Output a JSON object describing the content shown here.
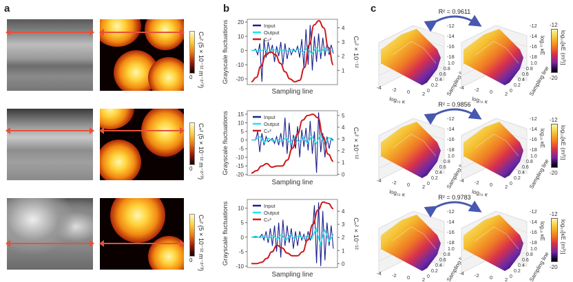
{
  "panels": {
    "a": "a",
    "b": "b",
    "c": "c"
  },
  "panel_a": {
    "colorbar_label": "Cₙ² (5 × 10⁻¹² m⁻²ᐟ³)",
    "colorbar_min": "0"
  },
  "panel_c": {
    "r2": [
      "R² = 0.9611",
      "R² = 0.9856",
      "R² = 0.9783"
    ],
    "z_ticks": [
      "-12",
      "-14",
      "-16",
      "-18"
    ],
    "x_ticks": [
      "-4",
      "-2",
      "0",
      "2"
    ],
    "y_ticks": [
      "0",
      "0.2",
      "0.4",
      "0.6",
      "0.8",
      "1.0"
    ],
    "xlabel": "log₁₀ κ",
    "ylabel": "Sampling line",
    "zlabel": "log₁₀ κE",
    "colorbar_label": "log₁₀[κE (m³)]",
    "colorbar_max": "-12",
    "colorbar_min": "-20",
    "colormap": [
      "#fbf7a8",
      "#f5c330",
      "#f27a20",
      "#d7304a",
      "#7a22a0",
      "#1a0a40",
      "#000000"
    ]
  },
  "colors": {
    "input": "#1a1f8c",
    "output": "#19e6f0",
    "cn2": "#cc1a1a",
    "arrow": "#e8503a",
    "r2_arrow": "#4858b0"
  },
  "chart_data": [
    {
      "type": "line",
      "xlabel": "Sampling line",
      "ylabel": "Grayscale fluctuations",
      "y2label": "Cₙ² × 10⁻¹²",
      "legend": [
        "Input",
        "Output",
        "Cₙ²"
      ],
      "legend_placement": "top-left",
      "ylim": [
        -24,
        22
      ],
      "yticks": [
        -20,
        -10,
        0,
        10,
        20
      ],
      "y2lim": [
        0,
        4.6
      ],
      "y2ticks": [
        1,
        2,
        3,
        4
      ],
      "input": [
        0,
        0,
        1,
        -3,
        5,
        -22,
        8,
        -5,
        6,
        -2,
        4,
        -8,
        3,
        -4,
        6,
        -10,
        5,
        -6,
        2,
        -3,
        1,
        -1,
        3,
        -5,
        8,
        -12,
        15,
        -10,
        18,
        -14,
        10,
        -8,
        12,
        -6,
        9,
        -4,
        5,
        -3,
        4,
        -2
      ],
      "output": [
        0,
        0.3,
        -0.5,
        1,
        -1.5,
        1,
        -0.8,
        0.6,
        -1,
        0.8,
        -0.5,
        1.2,
        -1.5,
        2,
        -2.5,
        2,
        -1.5,
        1.8,
        -1,
        0.5
      ],
      "cn2": [
        0.2,
        0.5,
        1.3,
        2.1,
        2.3,
        2.1,
        1.5,
        0.9,
        0.4,
        0.2,
        0.3,
        1.2,
        2.8,
        4.2,
        4.5,
        4.0,
        2.6,
        1.4
      ]
    },
    {
      "type": "line",
      "xlabel": "Sampling line",
      "ylabel": "Grayscale fluctuations",
      "y2label": "Cₙ² × 10⁻¹²",
      "legend": [
        "Input",
        "Output",
        "Cₙ²"
      ],
      "legend_placement": "top-left",
      "ylim": [
        -20.5,
        17
      ],
      "yticks": [
        -20,
        -15,
        -10,
        -5,
        0,
        5,
        10,
        15
      ],
      "y2lim": [
        -0.1,
        5.4
      ],
      "y2ticks": [
        0,
        1,
        2,
        3,
        4,
        5
      ],
      "input": [
        0,
        0,
        0,
        5,
        -7,
        4,
        -3,
        2,
        -1,
        0,
        1,
        -2,
        2,
        -3,
        4,
        -4,
        13,
        -8,
        10,
        -6,
        3,
        -5,
        8,
        -10,
        6,
        -4,
        7,
        -6,
        11,
        -8,
        5,
        -19,
        16,
        -7,
        4,
        -10,
        2,
        -5,
        1,
        0
      ],
      "output": [
        0,
        0.3,
        2,
        -1.5,
        1,
        -0.8,
        0.5,
        -1,
        1.2,
        -1.5,
        1.8,
        -1.2,
        2,
        -2,
        2.5,
        -2.2,
        2.8,
        -2,
        1.5,
        -0.5
      ],
      "cn2": [
        0.1,
        0.3,
        0.7,
        0.9,
        0.6,
        0.7,
        0.7,
        1.2,
        2.2,
        3.4,
        4.6,
        5.0,
        5.1,
        4.8,
        3.2,
        1.7,
        1.1
      ]
    },
    {
      "type": "line",
      "xlabel": "Sampling line",
      "ylabel": "Grayscale fluctuations",
      "y2label": "Cₙ² × 10⁻¹²",
      "legend": [
        "Input",
        "Output",
        "Cₙ²"
      ],
      "legend_placement": "top-left",
      "ylim": [
        -10.5,
        13
      ],
      "yticks": [
        -10,
        -5,
        0,
        5,
        10
      ],
      "y2lim": [
        -0.3,
        4.9
      ],
      "y2ticks": [
        0,
        1,
        2,
        3,
        4
      ],
      "input": [
        0,
        0,
        0,
        0,
        0,
        1,
        -1,
        2,
        -2,
        3,
        -3,
        4,
        -5,
        5,
        -7,
        6,
        -3,
        4,
        -2,
        3,
        -4,
        2,
        -3,
        2,
        -1,
        1,
        -2,
        2,
        -1,
        1,
        11,
        -9,
        12,
        -10,
        9,
        -8,
        5,
        -3,
        4,
        -4
      ],
      "output": [
        0,
        0.3,
        -0.2,
        0.4,
        -0.5,
        0.6,
        -0.8,
        1,
        -1.2,
        0.8,
        -0.6,
        0.5,
        -0.4,
        0.5,
        -0.6,
        3,
        -2.5,
        2.5,
        -1.5,
        1
      ],
      "cn2": [
        0,
        0,
        0.1,
        0.4,
        0.9,
        1.4,
        1.2,
        0.8,
        0.6,
        0.6,
        0.9,
        1.8,
        3.0,
        4.1,
        4.7,
        4.6,
        4.2
      ]
    }
  ]
}
